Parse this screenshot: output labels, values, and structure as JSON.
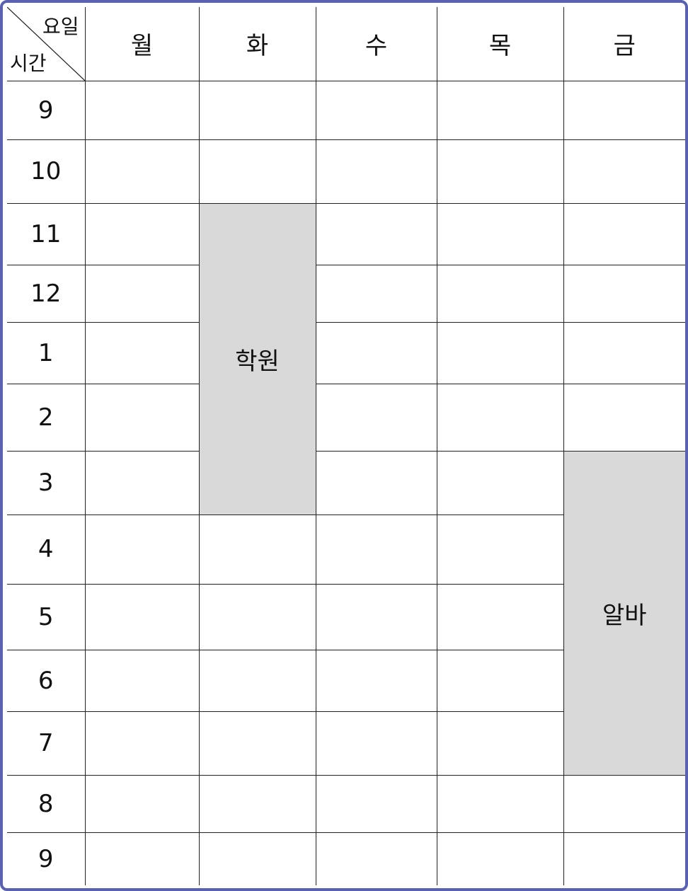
{
  "corner": {
    "day_label": "요일",
    "time_label": "시간"
  },
  "days": [
    "월",
    "화",
    "수",
    "목",
    "금"
  ],
  "hours": [
    "9",
    "10",
    "11",
    "12",
    "1",
    "2",
    "3",
    "4",
    "5",
    "6",
    "7",
    "8",
    "9"
  ],
  "events": [
    {
      "label": "학원",
      "day": "화",
      "start": "11",
      "end": "3"
    },
    {
      "label": "알바",
      "day": "금",
      "start": "3",
      "end": "7"
    }
  ],
  "colors": {
    "frame_border": "#5a62b0",
    "event_fill": "#d9d9d9",
    "grid_line": "#222222"
  }
}
